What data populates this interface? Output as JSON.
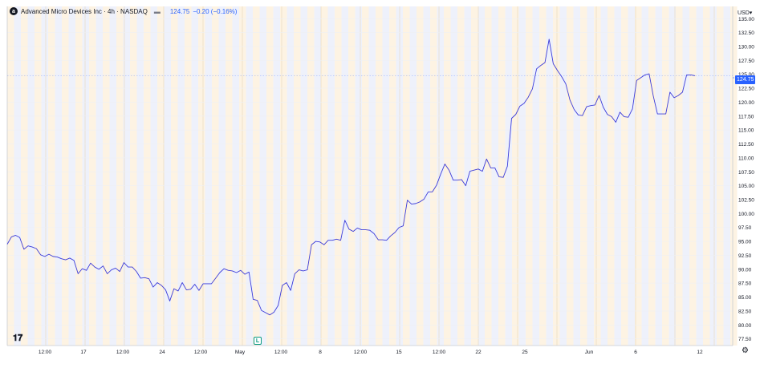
{
  "legend": {
    "logo_letter": "a",
    "title": "Advanced Micro Devices Inc · 4h · NASDAQ",
    "eye_icon": "eye-icon",
    "price": "124.75",
    "change": "−0.20 (−0.16%)"
  },
  "currency_select": "USD▾",
  "last_price_tag": "124.75",
  "tv_logo": "17",
  "event_marker": "L",
  "settings_icon": "⚙",
  "colors": {
    "line": "#3b3bd9",
    "grid": "#eef0f3",
    "band_a": "#fdf3e3",
    "band_b": "#eef1fb",
    "session_line": "#e8d7b9",
    "accent": "#2962ff"
  },
  "chart_data": {
    "type": "line",
    "series": [
      {
        "values": [
          94.5,
          95.8,
          96.1,
          95.7,
          93.6,
          94.2,
          94.0,
          93.7,
          92.6,
          92.3,
          92.7,
          92.3,
          92.2,
          91.9,
          91.7,
          92.0,
          91.6,
          89.2,
          90.1,
          89.8,
          91.1,
          90.4,
          90.0,
          90.6,
          89.2,
          89.9,
          90.2,
          89.6,
          91.2,
          90.4,
          90.4,
          89.6,
          88.4,
          88.5,
          88.3,
          86.8,
          87.6,
          87.1,
          86.3,
          84.3,
          86.5,
          86.1,
          87.6,
          86.3,
          86.4,
          87.3,
          86.2,
          87.4,
          87.4,
          87.4,
          88.4,
          89.4,
          90.1,
          89.8,
          89.7,
          89.4,
          89.8,
          89.1,
          89.5,
          84.6,
          84.4,
          82.6,
          82.2,
          81.8,
          82.3,
          83.5,
          87.1,
          87.6,
          86.2,
          89.2,
          89.9,
          89.7,
          89.9,
          94.4,
          95.0,
          94.9,
          94.4,
          95.2,
          95.2,
          95.4,
          95.2,
          98.8,
          97.2,
          96.8,
          97.4,
          97.1,
          97.1,
          97.0,
          96.4,
          95.3,
          95.3,
          95.2,
          96.0,
          96.6,
          97.5,
          97.8,
          102.4,
          101.7,
          101.8,
          102.1,
          102.6,
          103.9,
          103.9,
          105.1,
          107.1,
          108.9,
          107.8,
          106.0,
          106.0,
          106.1,
          105.0,
          107.6,
          107.8,
          108.0,
          107.6,
          109.8,
          108.2,
          108.2,
          106.6,
          106.5,
          108.5,
          117.1,
          117.8,
          119.3,
          119.8,
          120.9,
          122.4,
          126.0,
          126.6,
          127.1,
          131.3,
          126.9,
          125.7,
          124.6,
          123.3,
          120.4,
          118.7,
          117.7,
          117.6,
          119.2,
          119.4,
          119.5,
          121.2,
          119.1,
          117.8,
          117.4,
          116.4,
          118.2,
          117.4,
          117.3,
          118.8,
          123.9,
          124.4,
          124.9,
          125.1,
          121.1,
          117.9,
          117.9,
          117.9,
          121.8,
          120.8,
          121.2,
          121.8,
          124.9,
          124.9,
          124.75
        ]
      }
    ],
    "x_ticks": [
      "12:00",
      "17",
      "12:00",
      "24",
      "12:00",
      "May",
      "12:00",
      "8",
      "12:00",
      "15",
      "12:00",
      "22",
      "25",
      "Jun",
      "6",
      "12"
    ],
    "y_ticks": [
      "135.00",
      "132.50",
      "130.00",
      "127.50",
      "125.00",
      "122.50",
      "120.00",
      "117.50",
      "115.00",
      "112.50",
      "110.00",
      "107.50",
      "105.00",
      "102.50",
      "100.00",
      "97.50",
      "95.00",
      "92.50",
      "90.00",
      "87.50",
      "85.00",
      "82.50",
      "80.00",
      "77.50"
    ],
    "ylim": [
      76.3,
      137.2
    ],
    "grid": true,
    "legend": "top-left"
  }
}
